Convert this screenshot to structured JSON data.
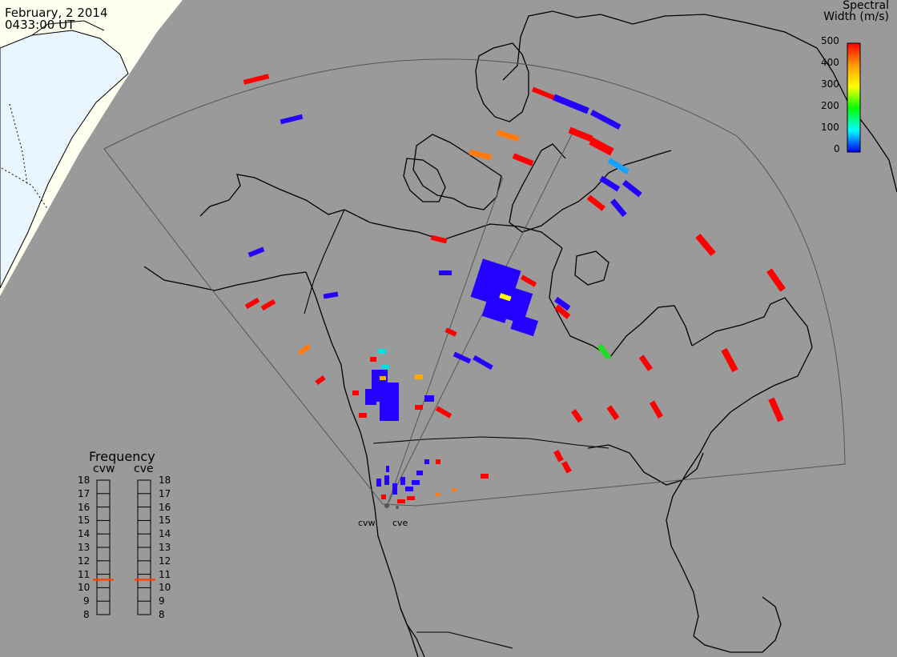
{
  "header": {
    "date": "February, 2 2014",
    "time": "0433:00 UT"
  },
  "colorbar": {
    "title_line1": "Spectral",
    "title_line2": "Width (m/s)",
    "ticks": [
      "500",
      "400",
      "300",
      "200",
      "100",
      "0"
    ],
    "gradient": [
      "#ff0000",
      "#ff9900",
      "#ffff00",
      "#00ff00",
      "#00ffff",
      "#0000ff"
    ]
  },
  "frequency_panel": {
    "title": "Frequency",
    "radars": [
      {
        "name": "cvw",
        "freq_mhz": 10.6
      },
      {
        "name": "cve",
        "freq_mhz": 10.6
      }
    ],
    "ticks": [
      "18",
      "17",
      "16",
      "15",
      "14",
      "13",
      "12",
      "11",
      "10",
      "9",
      "8"
    ],
    "marker_color": "#ff4400"
  },
  "sites": [
    "cvw",
    "cve"
  ],
  "colors": {
    "background": "#9a9a9a",
    "night": "#fffff0",
    "day": "#eaf6ff",
    "coast": "#000000",
    "fov": "#555555"
  },
  "echo_colors": {
    "red": "#ff0000",
    "blue": "#2400ff",
    "orange": "#ff7a10",
    "yellow": "#ffff00",
    "green": "#22dd22",
    "cyan": "#00e0e0",
    "lightblue": "#1aa0ff",
    "gold": "#ffaa00"
  }
}
